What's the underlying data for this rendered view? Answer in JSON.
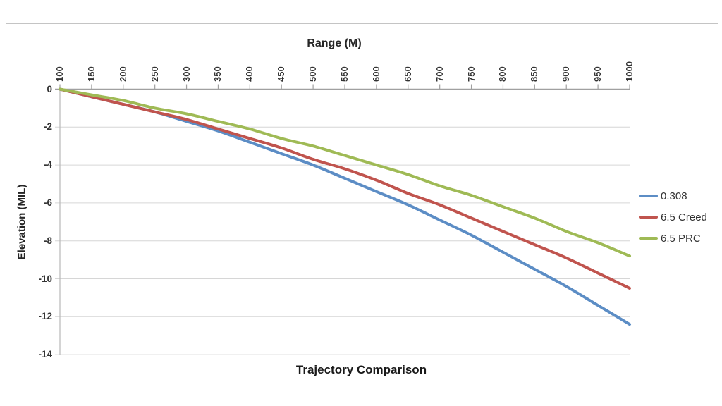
{
  "chart_data": {
    "type": "line",
    "title": "Trajectory Comparison",
    "xlabel": "Range (M)",
    "ylabel": "Elevation (MIL)",
    "x": [
      100,
      150,
      200,
      250,
      300,
      350,
      400,
      450,
      500,
      550,
      600,
      650,
      700,
      750,
      800,
      850,
      900,
      950,
      1000
    ],
    "xlim": [
      100,
      1000
    ],
    "ylim": [
      -14,
      0
    ],
    "y_ticks": [
      0,
      -2,
      -4,
      -6,
      -8,
      -10,
      -12,
      -14
    ],
    "grid": "horizontal gridlines every 2 MIL",
    "legend_position": "right",
    "series": [
      {
        "name": "0.308",
        "color": "#5C8DC5",
        "values": [
          0,
          -0.4,
          -0.8,
          -1.2,
          -1.7,
          -2.2,
          -2.8,
          -3.4,
          -4.0,
          -4.7,
          -5.4,
          -6.1,
          -6.9,
          -7.7,
          -8.6,
          -9.5,
          -10.4,
          -11.4,
          -12.4
        ]
      },
      {
        "name": "6.5 Creed",
        "color": "#C0544E",
        "values": [
          0,
          -0.4,
          -0.8,
          -1.2,
          -1.6,
          -2.1,
          -2.6,
          -3.1,
          -3.7,
          -4.2,
          -4.8,
          -5.5,
          -6.1,
          -6.8,
          -7.5,
          -8.2,
          -8.9,
          -9.7,
          -10.5
        ]
      },
      {
        "name": "6.5 PRC",
        "color": "#9FBA55",
        "values": [
          0,
          -0.3,
          -0.6,
          -1.0,
          -1.3,
          -1.7,
          -2.1,
          -2.6,
          -3.0,
          -3.5,
          -4.0,
          -4.5,
          -5.1,
          -5.6,
          -6.2,
          -6.8,
          -7.5,
          -8.1,
          -8.8
        ]
      }
    ],
    "colors": {
      "axis": "#a0a0a0",
      "grid": "#d6d6d6",
      "frame_border": "#c4c4c4",
      "text": "#333333",
      "background": "#ffffff"
    }
  }
}
